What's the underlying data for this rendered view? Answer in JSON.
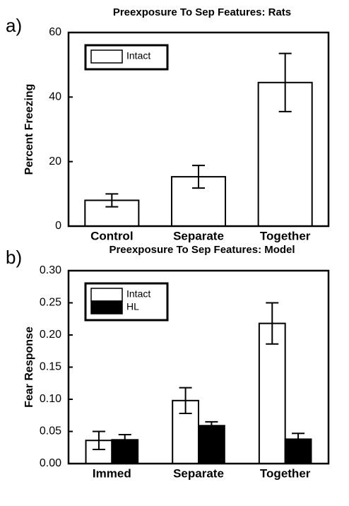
{
  "chart_data": [
    {
      "type": "bar",
      "panel": "a)",
      "title": "Preexposure To Sep Features: Rats",
      "y_label": "Percent Freezing",
      "categories": [
        "Control",
        "Separate",
        "Together"
      ],
      "series": [
        {
          "name": "Intact",
          "color": "#ffffff",
          "values": [
            8,
            15.3,
            44.5
          ],
          "errors": [
            2,
            3.5,
            9
          ]
        }
      ],
      "ylim": [
        0,
        60
      ],
      "yticks": [
        0,
        20,
        40,
        60
      ],
      "legend": "upper left"
    },
    {
      "type": "bar",
      "panel": "b)",
      "title": "Preexposure To Sep Features: Model",
      "y_label": "Fear Response",
      "categories": [
        "Immed",
        "Separate",
        "Together"
      ],
      "series": [
        {
          "name": "Intact",
          "color": "#ffffff",
          "values": [
            0.036,
            0.098,
            0.218
          ],
          "errors": [
            0.014,
            0.02,
            0.032
          ]
        },
        {
          "name": "HL",
          "color": "#000000",
          "values": [
            0.037,
            0.059,
            0.038
          ],
          "errors": [
            0.008,
            0.006,
            0.009
          ]
        }
      ],
      "ylim": [
        0,
        0.3
      ],
      "yticks": [
        {
          "value": 0,
          "label": "0.00"
        },
        {
          "value": 0.05,
          "label": "0.05"
        },
        {
          "value": 0.1,
          "label": "0.10"
        },
        {
          "value": 0.15,
          "label": "0.15"
        },
        {
          "value": 0.2,
          "label": "0.20"
        },
        {
          "value": 0.25,
          "label": "0.25"
        },
        {
          "value": 0.3,
          "label": "0.30"
        }
      ],
      "legend": "upper left"
    }
  ]
}
